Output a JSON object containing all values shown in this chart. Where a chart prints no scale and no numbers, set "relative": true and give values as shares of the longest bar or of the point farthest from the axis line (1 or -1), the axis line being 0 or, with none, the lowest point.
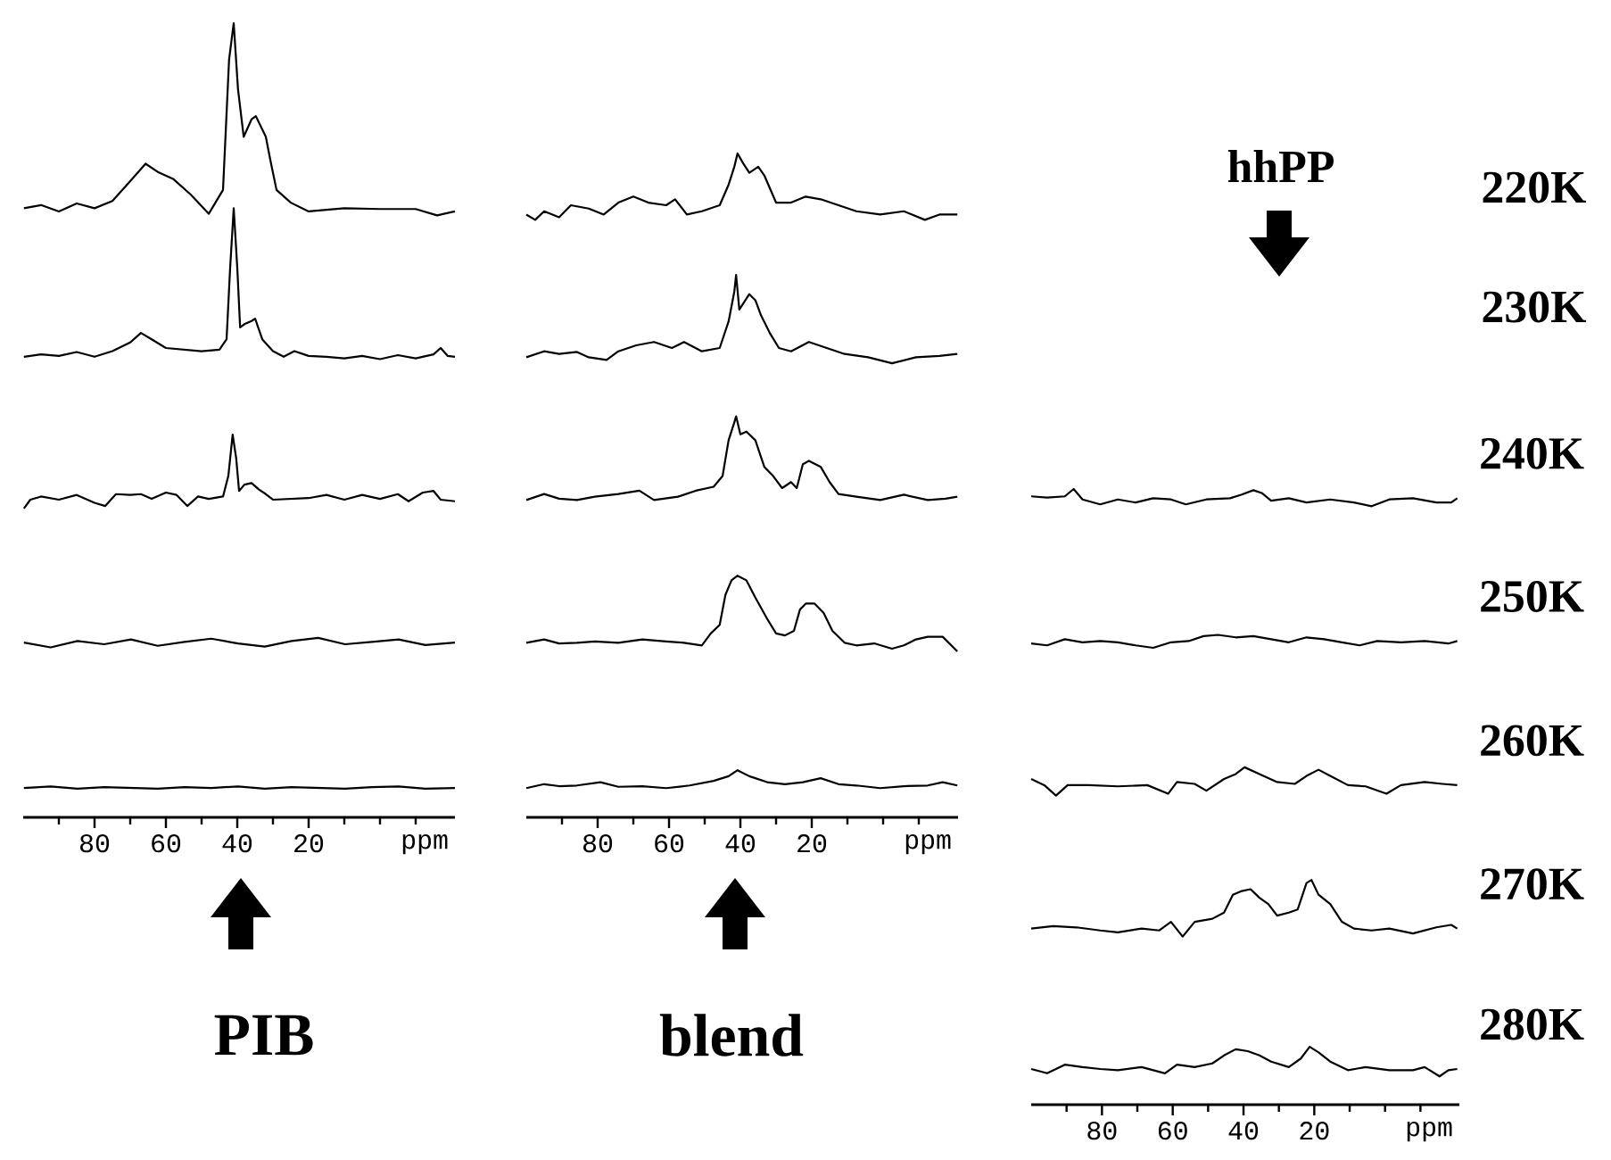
{
  "chart_data": [
    {
      "type": "line",
      "relative": true,
      "xlim": [
        100,
        -21
      ],
      "xticks": [
        80,
        60,
        40,
        20,
        {
          "value": 0,
          "label": null
        },
        {
          "value": 90,
          "label": null
        },
        {
          "value": 70,
          "label": null
        },
        {
          "value": 50,
          "label": null
        },
        {
          "value": 30,
          "label": null
        },
        {
          "value": 10,
          "label": null
        },
        {
          "value": -10,
          "label": null
        }
      ],
      "xlabel": "ppm",
      "annotations": [
        "PIB"
      ],
      "series": [
        {
          "color": "#000000",
          "x": [
            99.8,
            95,
            90,
            85,
            80,
            75,
            70,
            65.7,
            62,
            58,
            53,
            48,
            44,
            42.3,
            41,
            39.8,
            38.2,
            36,
            34.8,
            32,
            30.7,
            29,
            25,
            20,
            10,
            0,
            -10,
            -16,
            -21
          ],
          "values": [
            0.767,
            0.771,
            0.763,
            0.773,
            0.767,
            0.776,
            0.801,
            0.823,
            0.812,
            0.804,
            0.784,
            0.76,
            0.79,
            0.954,
            1.0,
            0.917,
            0.857,
            0.879,
            0.883,
            0.857,
            0.827,
            0.79,
            0.774,
            0.763,
            0.767,
            0.766,
            0.766,
            0.758,
            0.763
          ]
        },
        {
          "color": "#000000",
          "x": [
            99.8,
            95,
            90,
            85,
            80,
            75,
            70,
            67,
            64,
            60,
            55,
            50,
            45,
            43,
            42,
            41,
            40,
            39.2,
            38,
            36,
            35,
            33,
            30,
            27,
            24,
            20,
            15,
            10,
            5,
            0,
            -5,
            -10,
            -15,
            -17,
            -19,
            -21
          ],
          "values": [
            0.58,
            0.583,
            0.581,
            0.586,
            0.58,
            0.587,
            0.598,
            0.61,
            0.602,
            0.591,
            0.589,
            0.587,
            0.589,
            0.602,
            0.692,
            0.767,
            0.692,
            0.617,
            0.621,
            0.625,
            0.628,
            0.602,
            0.587,
            0.58,
            0.587,
            0.581,
            0.58,
            0.578,
            0.581,
            0.577,
            0.582,
            0.578,
            0.583,
            0.591,
            0.581,
            0.58
          ]
        },
        {
          "color": "#000000",
          "x": [
            99.8,
            98,
            95,
            90,
            85,
            80,
            77,
            74,
            70,
            67,
            64,
            60,
            57,
            54,
            51,
            48,
            44,
            42.5,
            41.3,
            40.3,
            39.5,
            38,
            36,
            34,
            32,
            30,
            25,
            20,
            15,
            10,
            5,
            0,
            -5,
            -8,
            -12,
            -15,
            -17,
            -21
          ],
          "values": [
            0.389,
            0.4,
            0.404,
            0.4,
            0.406,
            0.396,
            0.392,
            0.407,
            0.406,
            0.407,
            0.401,
            0.409,
            0.406,
            0.392,
            0.404,
            0.401,
            0.404,
            0.43,
            0.482,
            0.452,
            0.411,
            0.419,
            0.421,
            0.413,
            0.407,
            0.4,
            0.401,
            0.402,
            0.406,
            0.4,
            0.406,
            0.401,
            0.407,
            0.398,
            0.409,
            0.411,
            0.4,
            0.398
          ]
        },
        {
          "color": "#000000",
          "x": [
            99.8,
            92.3,
            84.8,
            77.3,
            69.8,
            62.3,
            54.8,
            47.3,
            39.8,
            32.3,
            24.8,
            17.3,
            9.8,
            2.3,
            -5.2,
            -12.7,
            -21
          ],
          "values": [
            0.22,
            0.214,
            0.222,
            0.218,
            0.224,
            0.216,
            0.221,
            0.225,
            0.219,
            0.215,
            0.222,
            0.226,
            0.218,
            0.221,
            0.224,
            0.217,
            0.22
          ]
        },
        {
          "color": "#000000",
          "x": [
            99.8,
            92.3,
            84.8,
            77.3,
            69.8,
            62.3,
            54.8,
            47.3,
            39.8,
            32.3,
            24.8,
            17.3,
            9.8,
            2.3,
            -5.2,
            -12.7,
            -21
          ],
          "values": [
            0.037,
            0.039,
            0.036,
            0.038,
            0.037,
            0.036,
            0.038,
            0.037,
            0.039,
            0.036,
            0.038,
            0.037,
            0.036,
            0.038,
            0.039,
            0.036,
            0.037
          ]
        }
      ]
    },
    {
      "type": "line",
      "relative": true,
      "xlim": [
        100,
        -21
      ],
      "xticks": [
        80,
        60,
        40,
        20,
        {
          "value": 0,
          "label": null
        },
        {
          "value": 90,
          "label": null
        },
        {
          "value": 70,
          "label": null
        },
        {
          "value": 50,
          "label": null
        },
        {
          "value": 30,
          "label": null
        },
        {
          "value": 10,
          "label": null
        },
        {
          "value": -10,
          "label": null
        }
      ],
      "xlabel": "ppm",
      "annotations": [
        "blend"
      ],
      "series": [
        {
          "color": "#000000",
          "x": [
            100,
            97.5,
            95,
            90.8,
            87.5,
            82.5,
            78.3,
            74.2,
            70,
            65.8,
            60.8,
            58.3,
            55,
            50.8,
            45.8,
            43.3,
            41.7,
            40.8,
            39.2,
            37.5,
            35,
            33.3,
            30,
            25.8,
            21.7,
            17.5,
            12.5,
            7.5,
            0.8,
            -5.8,
            -11.7,
            -15.8,
            -20.8
          ],
          "values": [
            0.908,
            0.9,
            0.913,
            0.904,
            0.922,
            0.917,
            0.908,
            0.926,
            0.935,
            0.926,
            0.922,
            0.931,
            0.908,
            0.913,
            0.922,
            0.953,
            0.98,
            1.0,
            0.985,
            0.971,
            0.98,
            0.967,
            0.926,
            0.926,
            0.935,
            0.931,
            0.922,
            0.913,
            0.908,
            0.913,
            0.9,
            0.908,
            0.908
          ]
        },
        {
          "color": "#000000",
          "x": [
            100,
            95,
            90.8,
            85.8,
            82.5,
            77.5,
            74.2,
            69.2,
            64.2,
            59.2,
            55.8,
            50.8,
            45.8,
            43.3,
            41.7,
            41.2,
            40.3,
            39.2,
            37.5,
            35.8,
            34.2,
            31.7,
            29.2,
            25.8,
            20.8,
            15.8,
            10.8,
            4.2,
            -2.5,
            -9.2,
            -15.8,
            -20.8
          ],
          "values": [
            0.693,
            0.702,
            0.698,
            0.701,
            0.693,
            0.689,
            0.702,
            0.711,
            0.716,
            0.707,
            0.716,
            0.702,
            0.707,
            0.747,
            0.792,
            0.817,
            0.765,
            0.774,
            0.788,
            0.779,
            0.756,
            0.729,
            0.707,
            0.702,
            0.716,
            0.707,
            0.698,
            0.693,
            0.684,
            0.693,
            0.695,
            0.698
          ]
        },
        {
          "color": "#000000",
          "x": [
            100,
            95,
            90.8,
            85.8,
            80.8,
            74.2,
            68.3,
            64.2,
            57.5,
            52.5,
            47.5,
            45,
            43.3,
            41.7,
            41.2,
            40,
            38.3,
            35.8,
            33.3,
            30.8,
            28.3,
            25.8,
            24.2,
            22.5,
            20.8,
            17.5,
            15,
            12.5,
            7.5,
            0.8,
            -5.8,
            -12.5,
            -17.5,
            -20.8
          ],
          "values": [
            0.478,
            0.487,
            0.48,
            0.478,
            0.483,
            0.487,
            0.492,
            0.478,
            0.483,
            0.492,
            0.498,
            0.514,
            0.568,
            0.595,
            0.604,
            0.577,
            0.581,
            0.568,
            0.528,
            0.514,
            0.496,
            0.505,
            0.496,
            0.532,
            0.537,
            0.528,
            0.505,
            0.487,
            0.483,
            0.478,
            0.486,
            0.478,
            0.48,
            0.483
          ]
        },
        {
          "color": "#000000",
          "x": [
            100,
            95,
            90.8,
            85.8,
            80.8,
            74.2,
            67.5,
            60.8,
            55.8,
            50.8,
            48.3,
            45.8,
            44.2,
            42.5,
            40.8,
            38.3,
            35.8,
            32.5,
            30,
            27.5,
            25,
            23.3,
            21.7,
            19.2,
            16.7,
            14.2,
            10.8,
            7.5,
            2.5,
            -2.5,
            -5.8,
            -9.2,
            -12.5,
            -16.7,
            -20.8
          ],
          "values": [
            0.263,
            0.268,
            0.262,
            0.263,
            0.265,
            0.263,
            0.268,
            0.265,
            0.263,
            0.259,
            0.277,
            0.29,
            0.335,
            0.357,
            0.364,
            0.357,
            0.331,
            0.299,
            0.277,
            0.274,
            0.281,
            0.313,
            0.322,
            0.322,
            0.308,
            0.281,
            0.263,
            0.259,
            0.262,
            0.254,
            0.259,
            0.268,
            0.272,
            0.272,
            0.25
          ]
        },
        {
          "color": "#000000",
          "x": [
            100,
            95,
            90.8,
            85.8,
            79.2,
            74.2,
            67.5,
            60.8,
            54.2,
            47.5,
            43.3,
            40.8,
            37.5,
            32.5,
            27.5,
            22.5,
            17.5,
            12.5,
            7.5,
            0.8,
            -5.8,
            -12.5,
            -16.7,
            -20.8
          ],
          "values": [
            0.044,
            0.05,
            0.047,
            0.048,
            0.053,
            0.046,
            0.047,
            0.044,
            0.048,
            0.055,
            0.062,
            0.071,
            0.062,
            0.053,
            0.05,
            0.053,
            0.059,
            0.05,
            0.048,
            0.044,
            0.047,
            0.048,
            0.053,
            0.048
          ]
        }
      ]
    },
    {
      "type": "line",
      "relative": true,
      "xlim": [
        100,
        -21
      ],
      "xticks": [
        80,
        60,
        40,
        20,
        {
          "value": 0,
          "label": null
        },
        {
          "value": 90,
          "label": null
        },
        {
          "value": 70,
          "label": null
        },
        {
          "value": 50,
          "label": null
        },
        {
          "value": 30,
          "label": null
        },
        {
          "value": 10,
          "label": null
        },
        {
          "value": -10,
          "label": null
        }
      ],
      "xlabel": "ppm",
      "annotations": [
        "hhPP",
        "220K",
        "230K"
      ],
      "series": [
        {
          "name": "240K",
          "color": "#000000",
          "x": [
            100,
            95.5,
            90.5,
            88,
            85.5,
            80.5,
            75.5,
            70.5,
            65.5,
            60.5,
            56.3,
            50.5,
            43.8,
            40.5,
            37.2,
            34.7,
            32.2,
            27.2,
            22.2,
            15.5,
            8.8,
            3.8,
            -1.2,
            -7.9,
            -14.5,
            -18.7,
            -20.4
          ],
          "values": [
            0.988,
            0.986,
            0.988,
            1.0,
            0.983,
            0.975,
            0.983,
            0.978,
            0.985,
            0.983,
            0.975,
            0.983,
            0.985,
            0.991,
            0.998,
            0.993,
            0.981,
            0.985,
            0.978,
            0.983,
            0.978,
            0.972,
            0.983,
            0.985,
            0.978,
            0.978,
            0.985
          ]
        },
        {
          "name": "250K",
          "color": "#000000",
          "x": [
            100,
            95.5,
            90.5,
            85.5,
            80.5,
            75.5,
            70.5,
            65.5,
            60.5,
            55.5,
            51.3,
            47.2,
            42.2,
            37.2,
            32.2,
            27.2,
            22.2,
            17.2,
            12.2,
            7.2,
            2.2,
            -4.5,
            -11.2,
            -17.9,
            -20.4
          ],
          "values": [
            0.749,
            0.746,
            0.756,
            0.751,
            0.753,
            0.751,
            0.746,
            0.742,
            0.751,
            0.753,
            0.761,
            0.763,
            0.759,
            0.761,
            0.756,
            0.751,
            0.759,
            0.756,
            0.751,
            0.746,
            0.753,
            0.751,
            0.753,
            0.749,
            0.753
          ]
        },
        {
          "name": "260K",
          "color": "#000000",
          "x": [
            100,
            96.3,
            93,
            89.7,
            83.8,
            75.5,
            67.2,
            61.3,
            58.8,
            53.8,
            50.5,
            45.5,
            42.2,
            39.7,
            35.5,
            30.5,
            25.5,
            22.2,
            18.8,
            15.5,
            10.5,
            5.5,
            -0.4,
            -4.5,
            -11.2,
            -16.2,
            -20.4
          ],
          "values": [
            0.529,
            0.519,
            0.502,
            0.519,
            0.519,
            0.517,
            0.519,
            0.505,
            0.524,
            0.521,
            0.51,
            0.529,
            0.537,
            0.548,
            0.537,
            0.524,
            0.521,
            0.534,
            0.544,
            0.534,
            0.519,
            0.517,
            0.505,
            0.519,
            0.524,
            0.521,
            0.519
          ]
        },
        {
          "name": "270K",
          "color": "#000000",
          "x": [
            100,
            93.8,
            87.2,
            80.5,
            75.5,
            68.8,
            63.8,
            60.5,
            57.2,
            53.8,
            48.8,
            45.5,
            43,
            40.5,
            38,
            35.5,
            33,
            30.5,
            27.2,
            24.7,
            22.2,
            20.8,
            18.8,
            15.5,
            12.2,
            8.8,
            3.8,
            -1.2,
            -7.9,
            -14.5,
            -18.7,
            -20.4
          ],
          "values": [
            0.286,
            0.29,
            0.288,
            0.283,
            0.28,
            0.286,
            0.283,
            0.297,
            0.273,
            0.297,
            0.302,
            0.312,
            0.341,
            0.347,
            0.35,
            0.336,
            0.326,
            0.307,
            0.312,
            0.317,
            0.36,
            0.365,
            0.341,
            0.326,
            0.297,
            0.286,
            0.283,
            0.286,
            0.278,
            0.288,
            0.292,
            0.286
          ]
        },
        {
          "name": "280K",
          "color": "#000000",
          "x": [
            100,
            95.5,
            90.5,
            85.5,
            80.5,
            75.5,
            68.8,
            62.2,
            58.8,
            53.8,
            48.8,
            45.5,
            42.2,
            38.8,
            35.5,
            32.2,
            27.2,
            23.8,
            21.3,
            18.8,
            15.5,
            10.5,
            5.5,
            -1.2,
            -7.9,
            -11.2,
            -15.4,
            -17.9,
            -20.4
          ],
          "values": [
            0.058,
            0.051,
            0.065,
            0.061,
            0.058,
            0.056,
            0.061,
            0.051,
            0.065,
            0.061,
            0.067,
            0.08,
            0.09,
            0.087,
            0.08,
            0.07,
            0.061,
            0.075,
            0.094,
            0.085,
            0.07,
            0.056,
            0.061,
            0.056,
            0.056,
            0.061,
            0.046,
            0.056,
            0.058
          ]
        }
      ]
    }
  ]
}
